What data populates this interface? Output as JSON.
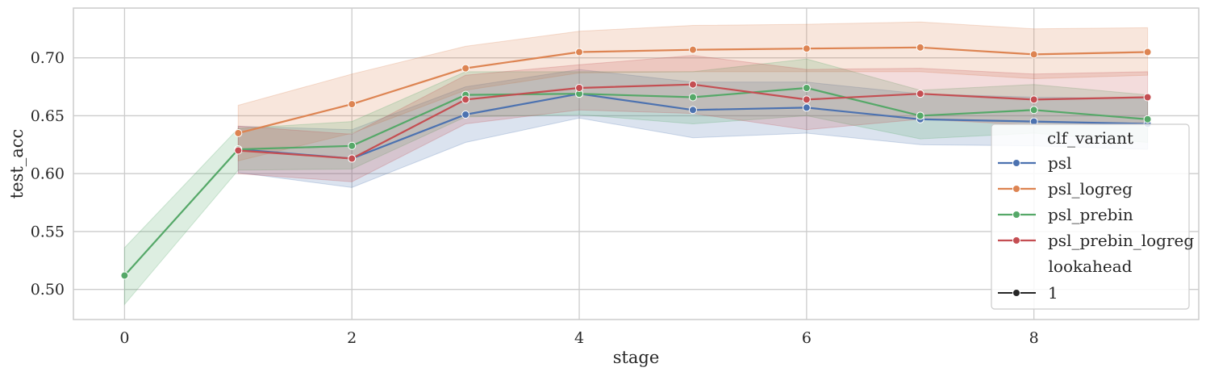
{
  "chart_data": {
    "type": "line",
    "xlabel": "stage",
    "ylabel": "test_acc",
    "xlim": [
      -0.45,
      9.45
    ],
    "ylim": [
      0.474,
      0.743
    ],
    "xticks": [
      0,
      2,
      4,
      6,
      8
    ],
    "yticks": [
      0.5,
      0.55,
      0.6,
      0.65,
      0.7
    ],
    "ytick_labels": [
      "0.50",
      "0.55",
      "0.60",
      "0.65",
      "0.70"
    ],
    "grid": true,
    "legend_placement": "lower-right",
    "legend": {
      "title_hue": "clf_variant",
      "title_style": "lookahead",
      "style_entry": "1"
    },
    "series": [
      {
        "name": "psl",
        "color": "#4c72b0",
        "x": [
          1,
          2,
          3,
          4,
          5,
          6,
          7,
          8,
          9
        ],
        "y": [
          0.621,
          0.613,
          0.651,
          0.669,
          0.655,
          0.657,
          0.647,
          0.645,
          0.643
        ],
        "lower": [
          0.601,
          0.588,
          0.627,
          0.648,
          0.631,
          0.635,
          0.625,
          0.624,
          0.621
        ],
        "upper": [
          0.641,
          0.638,
          0.675,
          0.69,
          0.679,
          0.679,
          0.669,
          0.666,
          0.665
        ]
      },
      {
        "name": "psl_logreg",
        "color": "#dd8452",
        "x": [
          1,
          2,
          3,
          4,
          5,
          6,
          7,
          8,
          9
        ],
        "y": [
          0.635,
          0.66,
          0.691,
          0.705,
          0.707,
          0.708,
          0.709,
          0.703,
          0.705
        ],
        "lower": [
          0.611,
          0.635,
          0.672,
          0.687,
          0.688,
          0.688,
          0.688,
          0.682,
          0.685
        ],
        "upper": [
          0.659,
          0.686,
          0.71,
          0.723,
          0.728,
          0.729,
          0.731,
          0.725,
          0.726
        ]
      },
      {
        "name": "psl_prebin",
        "color": "#55a868",
        "x": [
          0,
          1,
          2,
          3,
          4,
          5,
          6,
          7,
          8,
          9
        ],
        "y": [
          0.512,
          0.621,
          0.624,
          0.668,
          0.669,
          0.666,
          0.674,
          0.65,
          0.655,
          0.647
        ],
        "lower": [
          0.487,
          0.603,
          0.604,
          0.649,
          0.651,
          0.643,
          0.65,
          0.63,
          0.635,
          0.627
        ],
        "upper": [
          0.536,
          0.639,
          0.645,
          0.688,
          0.688,
          0.688,
          0.699,
          0.672,
          0.677,
          0.668
        ]
      },
      {
        "name": "psl_prebin_logreg",
        "color": "#c44e52",
        "x": [
          1,
          2,
          3,
          4,
          5,
          6,
          7,
          8,
          9
        ],
        "y": [
          0.62,
          0.613,
          0.664,
          0.674,
          0.677,
          0.664,
          0.669,
          0.664,
          0.666
        ],
        "lower": [
          0.6,
          0.593,
          0.643,
          0.655,
          0.652,
          0.638,
          0.647,
          0.642,
          0.644
        ],
        "upper": [
          0.641,
          0.634,
          0.685,
          0.694,
          0.702,
          0.69,
          0.691,
          0.686,
          0.688
        ]
      }
    ]
  }
}
